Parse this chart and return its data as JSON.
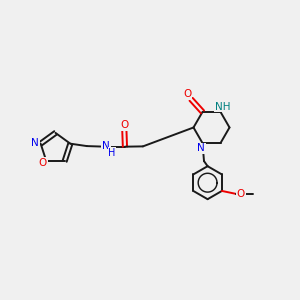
{
  "background_color": "#f0f0f0",
  "bond_color": "#1a1a1a",
  "N_color": "#0000ee",
  "O_color": "#ee0000",
  "NH_color": "#008080",
  "lw": 1.4,
  "fs": 7.5,
  "xlim": [
    0,
    10
  ],
  "ylim": [
    0,
    10
  ]
}
